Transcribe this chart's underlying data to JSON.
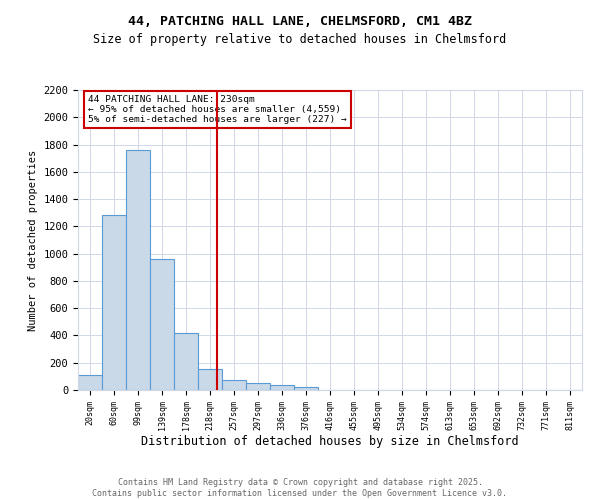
{
  "title1": "44, PATCHING HALL LANE, CHELMSFORD, CM1 4BZ",
  "title2": "Size of property relative to detached houses in Chelmsford",
  "xlabel": "Distribution of detached houses by size in Chelmsford",
  "ylabel": "Number of detached properties",
  "bins": [
    "20sqm",
    "60sqm",
    "99sqm",
    "139sqm",
    "178sqm",
    "218sqm",
    "257sqm",
    "297sqm",
    "336sqm",
    "376sqm",
    "416sqm",
    "455sqm",
    "495sqm",
    "534sqm",
    "574sqm",
    "613sqm",
    "653sqm",
    "692sqm",
    "732sqm",
    "771sqm",
    "811sqm"
  ],
  "values": [
    110,
    1280,
    1760,
    960,
    420,
    155,
    75,
    55,
    40,
    20,
    0,
    0,
    0,
    0,
    0,
    0,
    0,
    0,
    0,
    0,
    0
  ],
  "bar_color": "#c9d9e8",
  "bar_edge_color": "#5b9bd5",
  "vline_color": "#cc0000",
  "annotation_text": "44 PATCHING HALL LANE: 230sqm\n← 95% of detached houses are smaller (4,559)\n5% of semi-detached houses are larger (227) →",
  "annotation_box_color": "#ffffff",
  "annotation_box_edge": "#cc0000",
  "ylim": [
    0,
    2200
  ],
  "yticks": [
    0,
    200,
    400,
    600,
    800,
    1000,
    1200,
    1400,
    1600,
    1800,
    2000,
    2200
  ],
  "bg_color": "#ffffff",
  "grid_color": "#d0d8e8",
  "footer1": "Contains HM Land Registry data © Crown copyright and database right 2025.",
  "footer2": "Contains public sector information licensed under the Open Government Licence v3.0."
}
